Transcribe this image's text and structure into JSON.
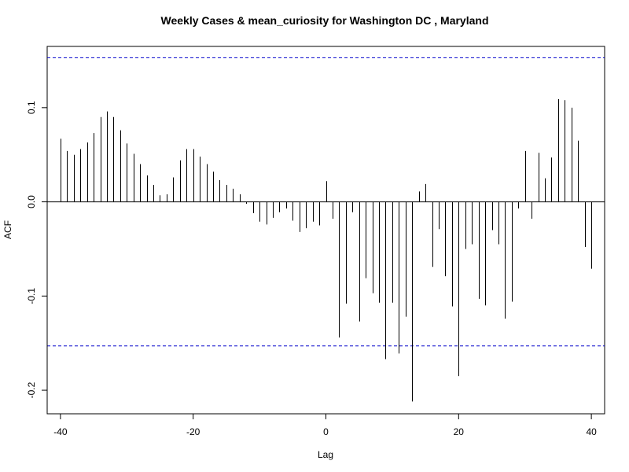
{
  "chart_data": {
    "type": "bar",
    "title": "Weekly Cases & mean_curiosity for Washington DC , Maryland",
    "xlabel": "Lag",
    "ylabel": "ACF",
    "xlim": [
      -42,
      42
    ],
    "ylim": [
      -0.225,
      0.165
    ],
    "xticks": [
      -40,
      -20,
      0,
      20,
      40
    ],
    "xtick_labels": [
      "-40",
      "-20",
      "0",
      "20",
      "40"
    ],
    "yticks": [
      -0.2,
      -0.1,
      0.0,
      0.1
    ],
    "ytick_labels": [
      "-0.2",
      "-0.1",
      "0.0",
      "0.1"
    ],
    "confidence_bounds": [
      0.153,
      -0.153
    ],
    "colors": {
      "bars": "#000000",
      "bounds": "#0000cc",
      "zero_line": "#000000"
    },
    "grid": false,
    "x": [
      -40,
      -39,
      -38,
      -37,
      -36,
      -35,
      -34,
      -33,
      -32,
      -31,
      -30,
      -29,
      -28,
      -27,
      -26,
      -25,
      -24,
      -23,
      -22,
      -21,
      -20,
      -19,
      -18,
      -17,
      -16,
      -15,
      -14,
      -13,
      -12,
      -11,
      -10,
      -9,
      -8,
      -7,
      -6,
      -5,
      -4,
      -3,
      -2,
      -1,
      0,
      1,
      2,
      3,
      4,
      5,
      6,
      7,
      8,
      9,
      10,
      11,
      12,
      13,
      14,
      15,
      16,
      17,
      18,
      19,
      20,
      21,
      22,
      23,
      24,
      25,
      26,
      27,
      28,
      29,
      30,
      31,
      32,
      33,
      34,
      35,
      36,
      37,
      38,
      39,
      40
    ],
    "values": [
      0.067,
      0.054,
      0.05,
      0.056,
      0.063,
      0.073,
      0.09,
      0.096,
      0.09,
      0.076,
      0.062,
      0.051,
      0.04,
      0.028,
      0.018,
      0.007,
      0.008,
      0.026,
      0.044,
      0.056,
      0.056,
      0.048,
      0.04,
      0.032,
      0.023,
      0.018,
      0.014,
      0.008,
      -0.002,
      -0.012,
      -0.021,
      -0.024,
      -0.017,
      -0.011,
      -0.007,
      -0.02,
      -0.032,
      -0.028,
      -0.021,
      -0.025,
      0.022,
      -0.018,
      -0.144,
      -0.108,
      -0.011,
      -0.127,
      -0.081,
      -0.097,
      -0.107,
      -0.167,
      -0.107,
      -0.161,
      -0.122,
      -0.212,
      0.011,
      0.019,
      -0.069,
      -0.029,
      -0.079,
      -0.111,
      -0.185,
      -0.05,
      -0.045,
      -0.103,
      -0.11,
      -0.03,
      -0.045,
      -0.124,
      -0.106,
      -0.007,
      0.054,
      -0.018,
      0.052,
      0.025,
      0.047,
      0.109,
      0.108,
      0.1,
      0.065,
      -0.048,
      -0.071
    ]
  }
}
